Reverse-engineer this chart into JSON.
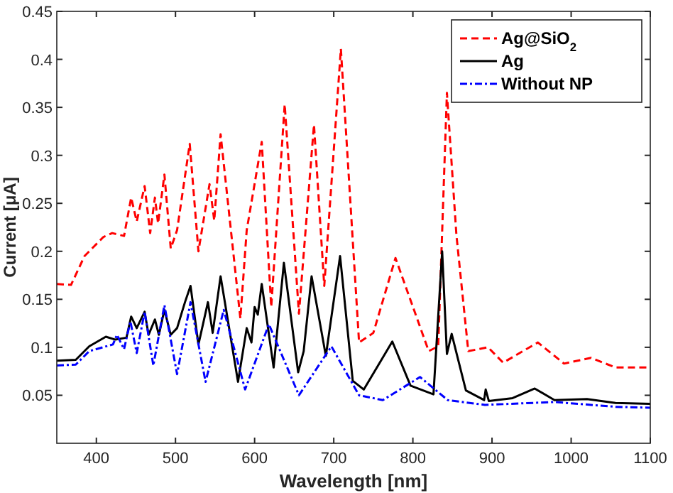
{
  "chart_data": {
    "type": "line",
    "xlabel": "Wavelength [nm]",
    "ylabel": "Current [μA]",
    "xlim": [
      350,
      1100
    ],
    "ylim": [
      0,
      0.45
    ],
    "xticks": [
      400,
      500,
      600,
      700,
      800,
      900,
      1000,
      1100
    ],
    "yticks": [
      0.05,
      0.1,
      0.15,
      0.2,
      0.25,
      0.3,
      0.35,
      0.4,
      0.45
    ],
    "grid": false,
    "legend": "top right",
    "series": [
      {
        "name": "Ag@SiO$_{2}$",
        "color": "#ff0000",
        "line_style": "dashed",
        "x": [
          350,
          368,
          385,
          409,
          420,
          435,
          444,
          451,
          461,
          468,
          474,
          478,
          486,
          494,
          502,
          518,
          529,
          543,
          549,
          557,
          582,
          590,
          609,
          621,
          638,
          656,
          675,
          688,
          709,
          732,
          750,
          778,
          820,
          832,
          843,
          855,
          870,
          895,
          914,
          958,
          991,
          1025,
          1056,
          1100
        ],
        "values": [
          0.166,
          0.165,
          0.195,
          0.215,
          0.219,
          0.216,
          0.256,
          0.231,
          0.268,
          0.219,
          0.256,
          0.229,
          0.28,
          0.203,
          0.222,
          0.312,
          0.2,
          0.27,
          0.232,
          0.322,
          0.13,
          0.222,
          0.314,
          0.142,
          0.353,
          0.135,
          0.332,
          0.164,
          0.411,
          0.105,
          0.115,
          0.193,
          0.096,
          0.101,
          0.365,
          0.217,
          0.096,
          0.1,
          0.084,
          0.105,
          0.083,
          0.089,
          0.079,
          0.079
        ]
      },
      {
        "name": "Ag",
        "color": "#000000",
        "line_style": "solid",
        "x": [
          350,
          374,
          391,
          412,
          424,
          438,
          444,
          451,
          461,
          466,
          474,
          479,
          486,
          494,
          502,
          512,
          519,
          529,
          541,
          547,
          557,
          579,
          590,
          596,
          600,
          604,
          609,
          624,
          637,
          655,
          662,
          672,
          690,
          708,
          724,
          738,
          774,
          797,
          826,
          837,
          843,
          849,
          867,
          890,
          892,
          896,
          926,
          954,
          979,
          1020,
          1056,
          1100
        ],
        "values": [
          0.086,
          0.087,
          0.101,
          0.111,
          0.108,
          0.11,
          0.132,
          0.12,
          0.137,
          0.113,
          0.129,
          0.113,
          0.139,
          0.113,
          0.12,
          0.147,
          0.164,
          0.103,
          0.147,
          0.115,
          0.174,
          0.064,
          0.12,
          0.105,
          0.142,
          0.134,
          0.166,
          0.079,
          0.188,
          0.074,
          0.096,
          0.174,
          0.091,
          0.195,
          0.065,
          0.056,
          0.106,
          0.06,
          0.051,
          0.2,
          0.093,
          0.114,
          0.055,
          0.045,
          0.056,
          0.044,
          0.047,
          0.057,
          0.045,
          0.046,
          0.042,
          0.041
        ]
      },
      {
        "name": "Without NP",
        "color": "#0000ff",
        "line_style": "dashdot",
        "x": [
          350,
          374,
          391,
          421,
          426,
          435,
          443,
          451,
          461,
          472,
          486,
          502,
          519,
          538,
          561,
          588,
          618,
          656,
          697,
          732,
          762,
          809,
          844,
          891,
          979,
          1056,
          1100
        ],
        "values": [
          0.081,
          0.082,
          0.096,
          0.103,
          0.113,
          0.098,
          0.127,
          0.094,
          0.137,
          0.081,
          0.144,
          0.072,
          0.147,
          0.064,
          0.139,
          0.056,
          0.124,
          0.05,
          0.101,
          0.05,
          0.045,
          0.069,
          0.045,
          0.04,
          0.043,
          0.038,
          0.037
        ]
      }
    ]
  }
}
